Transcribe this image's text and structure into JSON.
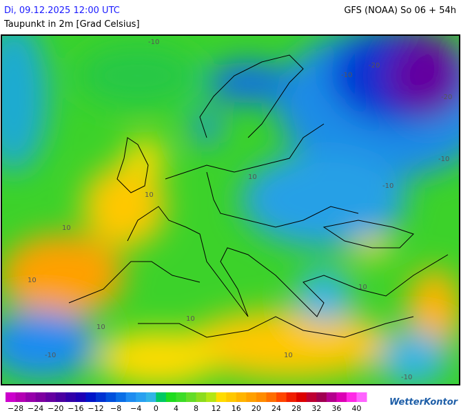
{
  "header": {
    "datetime": "Di, 09.12.2025 12:00 UTC",
    "model": "GFS (NOAA) So 06 + 54h",
    "parameter": "Taupunkt in 2m [Grad Celsius]"
  },
  "map": {
    "contour_labels": [
      "-10",
      "10",
      "-20",
      "-10",
      "-20",
      "-10",
      "10",
      "-10",
      "10",
      "10",
      "-10",
      "10",
      "-10",
      "10",
      "10",
      "10"
    ]
  },
  "legend": {
    "labels": [
      "−28",
      "−24",
      "−20",
      "−16",
      "−12",
      "−8",
      "−4",
      "0",
      "4",
      "8",
      "12",
      "16",
      "20",
      "24",
      "28",
      "32",
      "36",
      "40"
    ],
    "colors": [
      "#cc00cc",
      "#b400b4",
      "#9600aa",
      "#7d00a0",
      "#6400a0",
      "#4b00a0",
      "#3200a8",
      "#1e00b4",
      "#0014c8",
      "#0032d2",
      "#0050dc",
      "#0a6ee6",
      "#1e8cf0",
      "#28a0f0",
      "#32b4e6",
      "#00c864",
      "#1edc1e",
      "#3cdc28",
      "#64dc28",
      "#8cdc1e",
      "#b4e614",
      "#ffdc00",
      "#ffc800",
      "#ffb400",
      "#ffa000",
      "#ff8c00",
      "#ff6e00",
      "#ff4600",
      "#f01e00",
      "#dc0000",
      "#be0032",
      "#a00050",
      "#b4008c",
      "#dc00b4",
      "#ff28e6",
      "#ff64ff"
    ]
  },
  "brand": "WetterKontor"
}
